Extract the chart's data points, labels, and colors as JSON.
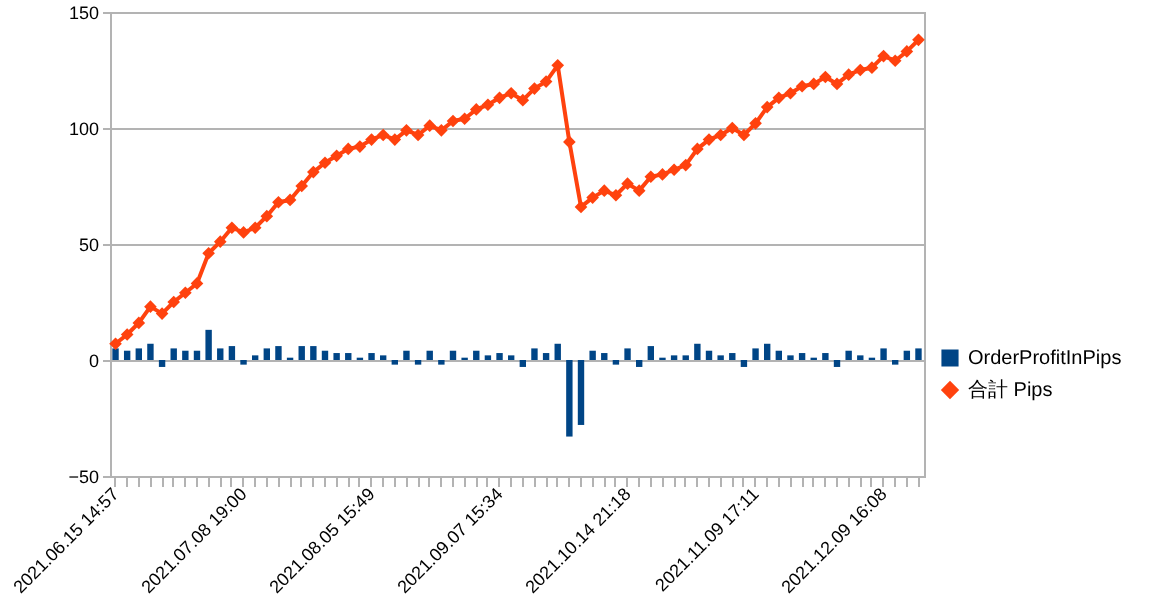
{
  "chart_data": {
    "type": "bar",
    "categories": [
      "2021.06.15 14:57",
      null,
      null,
      null,
      null,
      null,
      null,
      null,
      null,
      null,
      null,
      "2021.07.08 19:00",
      null,
      null,
      null,
      null,
      null,
      null,
      null,
      null,
      null,
      null,
      "2021.08.05 15:49",
      null,
      null,
      null,
      null,
      null,
      null,
      null,
      null,
      null,
      null,
      "2021.09.07 15:34",
      null,
      null,
      null,
      null,
      null,
      null,
      null,
      null,
      null,
      null,
      "2021.10.14 21:18",
      null,
      null,
      null,
      null,
      null,
      null,
      null,
      null,
      null,
      null,
      "2021.11.09 17:11",
      null,
      null,
      null,
      null,
      null,
      null,
      null,
      null,
      null,
      null,
      "2021.12.09 16:08",
      null,
      null,
      null
    ],
    "series": [
      {
        "name": "OrderProfitInPips",
        "color": "#004586",
        "values": [
          5,
          4,
          5,
          7,
          -3,
          5,
          4,
          4,
          13,
          5,
          6,
          -2,
          2,
          5,
          6,
          1,
          6,
          6,
          4,
          3,
          3,
          1,
          3,
          2,
          -2,
          4,
          -2,
          4,
          -2,
          4,
          1,
          4,
          2,
          3,
          2,
          -3,
          5,
          3,
          7,
          -33,
          -28,
          4,
          3,
          -2,
          5,
          -3,
          6,
          1,
          2,
          2,
          7,
          4,
          2,
          3,
          -3,
          5,
          7,
          4,
          2,
          3,
          1,
          3,
          -3,
          4,
          2,
          1,
          5,
          -2,
          4,
          5
        ]
      },
      {
        "name": "合計 Pips",
        "type": "line",
        "color": "#ff420e",
        "values": [
          7,
          11,
          16,
          23,
          20,
          25,
          29,
          33,
          46,
          51,
          57,
          55,
          57,
          62,
          68,
          69,
          75,
          81,
          85,
          88,
          91,
          92,
          95,
          97,
          95,
          99,
          97,
          101,
          99,
          103,
          104,
          108,
          110,
          113,
          115,
          112,
          117,
          120,
          127,
          94,
          66,
          70,
          73,
          71,
          76,
          73,
          79,
          80,
          82,
          84,
          91,
          95,
          97,
          100,
          97,
          102,
          109,
          113,
          115,
          118,
          119,
          122,
          119,
          123,
          125,
          126,
          131,
          129,
          133,
          138
        ]
      }
    ],
    "ylim": [
      -50,
      150
    ],
    "yticks": [
      -50,
      0,
      50,
      100,
      150
    ],
    "grid": "y",
    "legend": "right",
    "marker": "diamond",
    "line_style": "solid"
  }
}
